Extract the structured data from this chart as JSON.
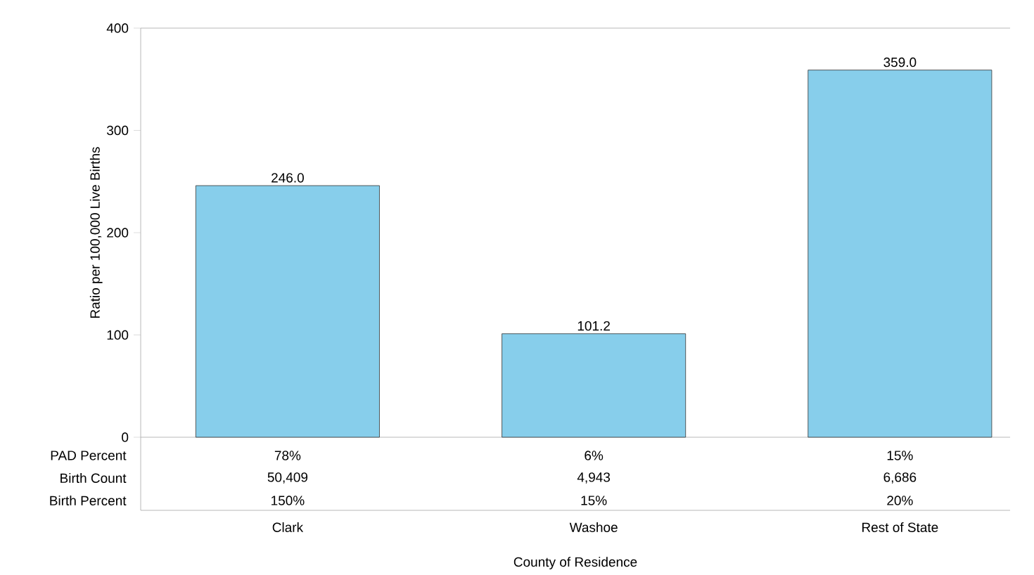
{
  "chart_data": {
    "type": "bar",
    "categories": [
      "Clark",
      "Washoe",
      "Rest of State"
    ],
    "values": [
      246.0,
      101.2,
      359.0
    ],
    "value_labels": [
      "246.0",
      "101.2",
      "359.0"
    ],
    "color": "#87ceeb",
    "xlabel": "County of Residence",
    "ylabel": "Ratio per 100,000 Live Births",
    "ylim": [
      0,
      400
    ],
    "yticks": [
      0,
      100,
      200,
      300,
      400
    ],
    "grid": false,
    "annotations": [
      "PAD Percent",
      "78%",
      "6%",
      "15%",
      "Birth Count",
      "50,409",
      "4,943",
      "6,686",
      "Birth Percent",
      "150%",
      "15%",
      "20%"
    ]
  }
}
